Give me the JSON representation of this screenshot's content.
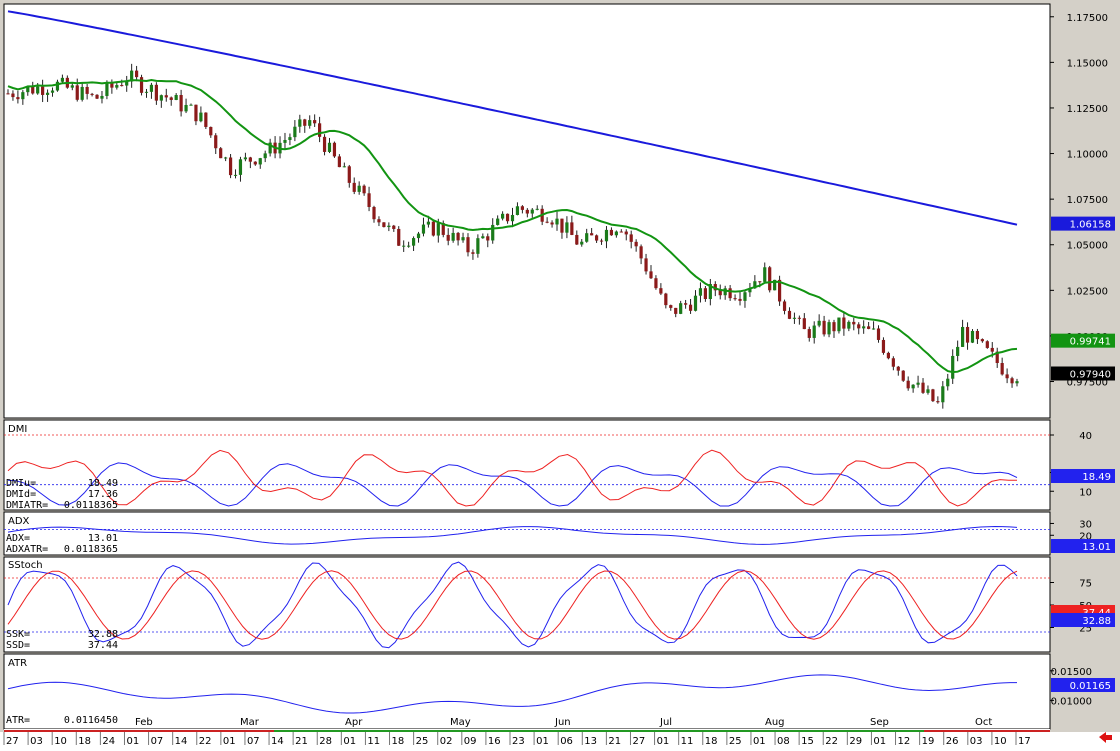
{
  "chart_data": [
    {
      "type": "candlestick",
      "title": "",
      "yticks": [
        "1.17500",
        "1.15000",
        "1.12500",
        "1.10000",
        "1.07500",
        "1.05000",
        "1.02500",
        "1.00000",
        "0.97500"
      ],
      "ylim": [
        0.955,
        1.182
      ],
      "series": [
        {
          "role": "ma-slow",
          "color": "#1a1adc",
          "last_label": "1.06158"
        },
        {
          "role": "ma-fast",
          "color": "#129412",
          "last_label": "0.99741"
        },
        {
          "role": "last-close",
          "color": "#000000",
          "last_label": "0.97940"
        }
      ],
      "candle_colors": {
        "up": "#1a7a1a",
        "down": "#8b1a1a"
      }
    },
    {
      "type": "line",
      "title": "DMI",
      "yticks": [
        "40",
        "20",
        "10"
      ],
      "readout": [
        {
          "label": "DMIu=",
          "value": "18.49"
        },
        {
          "label": "DMId=",
          "value": "17.36"
        },
        {
          "label": "DMIATR=",
          "value": "0.0118365"
        }
      ],
      "last_label": "18.49",
      "series_colors": {
        "up": "#ee2222",
        "down": "#2222ee"
      }
    },
    {
      "type": "line",
      "title": "ADX",
      "yticks": [
        "30",
        "20"
      ],
      "readout": [
        {
          "label": "ADX=",
          "value": "13.01"
        },
        {
          "label": "ADXATR=",
          "value": "0.0118365"
        }
      ],
      "last_label": "13.01"
    },
    {
      "type": "line",
      "title": "SStoch",
      "yticks": [
        "75",
        "50",
        "25"
      ],
      "readout": [
        {
          "label": "SSK=",
          "value": "32.88"
        },
        {
          "label": "SSD=",
          "value": "37.44"
        }
      ],
      "last_labels": [
        "37.44",
        "32.88"
      ]
    },
    {
      "type": "line",
      "title": "ATR",
      "yticks": [
        "0.01500",
        "0.01000"
      ],
      "readout": [
        {
          "label": "ATR=",
          "value": "0.0116450"
        }
      ],
      "last_label": "0.01165"
    }
  ],
  "x_axis": {
    "days": [
      "27",
      "03",
      "10",
      "18",
      "24",
      "01",
      "07",
      "14",
      "22",
      "01",
      "07",
      "14",
      "21",
      "28",
      "01",
      "11",
      "18",
      "25",
      "02",
      "09",
      "16",
      "23",
      "01",
      "06",
      "13",
      "21",
      "27",
      "01",
      "11",
      "18",
      "25",
      "01",
      "08",
      "15",
      "22",
      "29",
      "01",
      "12",
      "19",
      "26",
      "03",
      "10",
      "17"
    ],
    "months": [
      "Feb",
      "Mar",
      "Apr",
      "May",
      "Jun",
      "Jul",
      "Aug",
      "Sep",
      "Oct"
    ]
  },
  "icons": {
    "scroll": "left-arrow-icon",
    "scroll_color": "#dd1111"
  }
}
